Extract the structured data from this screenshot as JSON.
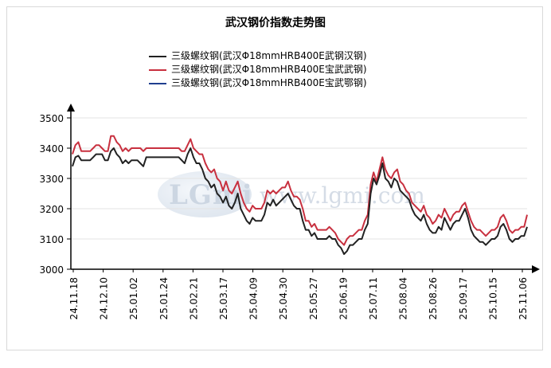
{
  "chart_data": {
    "type": "line",
    "title": "武汉钢价指数走势图",
    "xlabel": "",
    "ylabel": "",
    "ylim": [
      3000,
      3500
    ],
    "yticks": [
      3000,
      3100,
      3200,
      3300,
      3400,
      3500
    ],
    "x_tick_labels": [
      "24.11.18",
      "24.12.10",
      "25.01.02",
      "25.01.24",
      "25.02.21",
      "25.03.17",
      "25.04.09",
      "25.04.30",
      "25.05.27",
      "25.06.19",
      "25.07.11",
      "25.08.04",
      "25.08.26",
      "25.09.17",
      "25.10.15",
      "25.11.06"
    ],
    "grid": "horizontal",
    "legend_position": "top",
    "series": [
      {
        "name": "三级螺纹钢(武汉Φ18mmHRB400E武钢汉钢)",
        "color": "#222222",
        "values": [
          3340,
          3370,
          3375,
          3360,
          3360,
          3360,
          3360,
          3370,
          3380,
          3380,
          3380,
          3360,
          3360,
          3390,
          3400,
          3380,
          3370,
          3350,
          3360,
          3350,
          3360,
          3360,
          3360,
          3350,
          3340,
          3370,
          3370,
          3370,
          3370,
          3370,
          3370,
          3370,
          3370,
          3370,
          3370,
          3370,
          3370,
          3360,
          3350,
          3380,
          3400,
          3370,
          3350,
          3350,
          3330,
          3300,
          3290,
          3270,
          3280,
          3250,
          3240,
          3220,
          3240,
          3210,
          3200,
          3220,
          3250,
          3200,
          3180,
          3160,
          3150,
          3170,
          3160,
          3160,
          3160,
          3180,
          3220,
          3210,
          3230,
          3210,
          3220,
          3230,
          3240,
          3250,
          3230,
          3210,
          3200,
          3200,
          3160,
          3130,
          3130,
          3110,
          3120,
          3100,
          3100,
          3100,
          3100,
          3110,
          3100,
          3100,
          3080,
          3070,
          3050,
          3060,
          3080,
          3080,
          3090,
          3100,
          3100,
          3130,
          3150,
          3250,
          3300,
          3280,
          3310,
          3350,
          3300,
          3290,
          3270,
          3300,
          3290,
          3260,
          3250,
          3240,
          3230,
          3200,
          3180,
          3170,
          3160,
          3180,
          3150,
          3130,
          3120,
          3120,
          3140,
          3130,
          3170,
          3150,
          3130,
          3150,
          3160,
          3160,
          3180,
          3200,
          3170,
          3130,
          3110,
          3100,
          3090,
          3090,
          3080,
          3090,
          3100,
          3100,
          3110,
          3140,
          3150,
          3130,
          3100,
          3090,
          3100,
          3100,
          3110,
          3110,
          3140
        ]
      },
      {
        "name": "三级螺纹钢(武汉Φ18mmHRB400E宝武武钢)",
        "color": "#c8303f",
        "values": [
          3380,
          3410,
          3420,
          3390,
          3390,
          3390,
          3390,
          3400,
          3410,
          3410,
          3400,
          3390,
          3390,
          3440,
          3440,
          3420,
          3410,
          3390,
          3400,
          3390,
          3400,
          3400,
          3400,
          3400,
          3390,
          3400,
          3400,
          3400,
          3400,
          3400,
          3400,
          3400,
          3400,
          3400,
          3400,
          3400,
          3400,
          3390,
          3390,
          3410,
          3430,
          3400,
          3390,
          3380,
          3380,
          3350,
          3330,
          3320,
          3330,
          3300,
          3290,
          3260,
          3290,
          3260,
          3250,
          3270,
          3290,
          3250,
          3220,
          3200,
          3190,
          3210,
          3200,
          3200,
          3200,
          3220,
          3260,
          3250,
          3260,
          3250,
          3260,
          3270,
          3270,
          3290,
          3260,
          3240,
          3240,
          3230,
          3200,
          3160,
          3160,
          3140,
          3150,
          3130,
          3130,
          3130,
          3130,
          3140,
          3130,
          3120,
          3100,
          3090,
          3080,
          3100,
          3110,
          3110,
          3120,
          3130,
          3130,
          3160,
          3180,
          3280,
          3320,
          3290,
          3330,
          3370,
          3330,
          3310,
          3300,
          3320,
          3330,
          3290,
          3280,
          3260,
          3250,
          3220,
          3210,
          3200,
          3190,
          3210,
          3180,
          3170,
          3150,
          3160,
          3180,
          3170,
          3200,
          3180,
          3160,
          3180,
          3190,
          3190,
          3210,
          3220,
          3190,
          3160,
          3140,
          3130,
          3130,
          3120,
          3110,
          3120,
          3130,
          3130,
          3140,
          3170,
          3180,
          3160,
          3130,
          3120,
          3130,
          3130,
          3140,
          3140,
          3180
        ]
      },
      {
        "name": "三级螺纹钢(武汉Φ18mmHRB400E宝武鄂钢)",
        "color": "#1f3f8f",
        "values": []
      }
    ]
  }
}
